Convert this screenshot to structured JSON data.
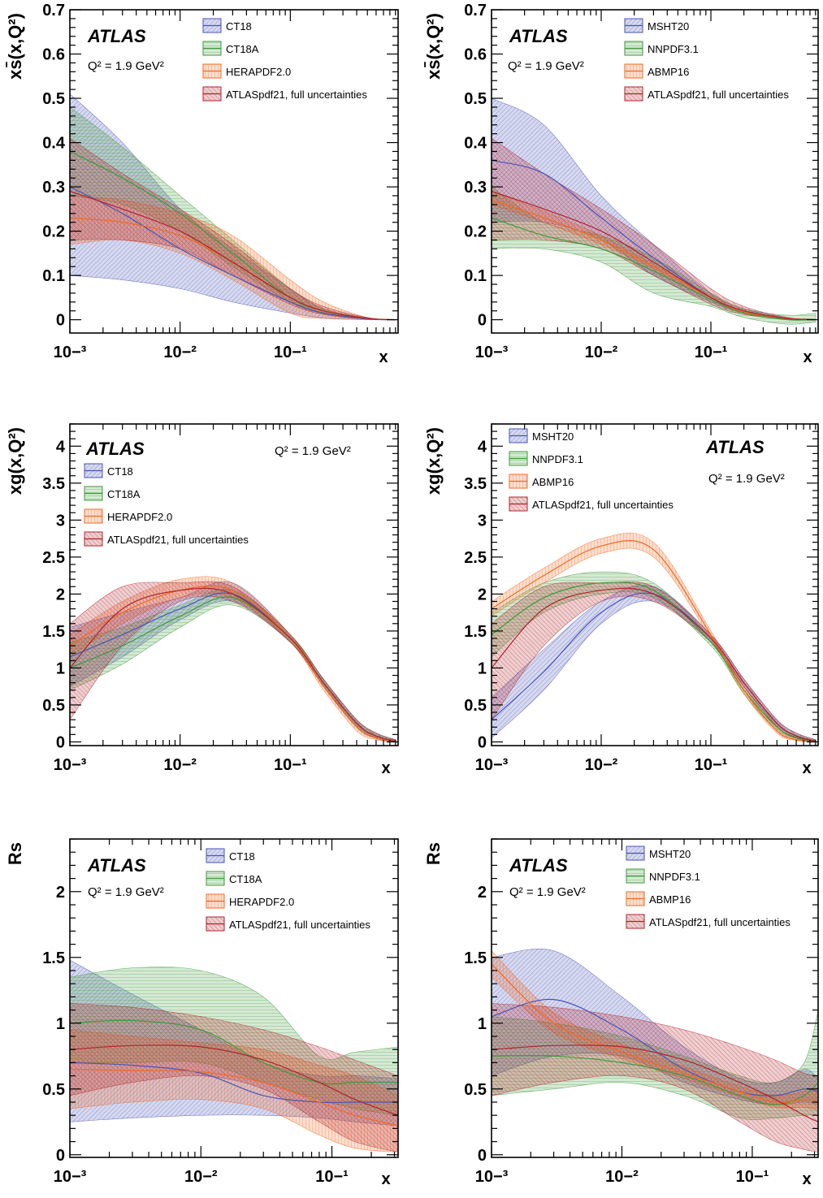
{
  "figure": {
    "title": "",
    "colors": {
      "CT18": "#4a54b8",
      "CT18A": "#3f9a3a",
      "HERAPDF2.0": "#f06a22",
      "MSHT20": "#4a54b8",
      "NNPDF3.1": "#3f9a3a",
      "ABMP16": "#f06a22",
      "ATLASpdf21, full uncertainties": "#b0232a"
    }
  },
  "chart_data": [
    {
      "type": "area",
      "id": "p1",
      "ylabel": "xs̄(x,Q²)",
      "xlabel": "x",
      "xscale": "log",
      "xlim": [
        0.001,
        0.95
      ],
      "ylim": [
        -0.03,
        0.7
      ],
      "yticks": [
        0,
        0.1,
        0.2,
        0.3,
        0.4,
        0.5,
        0.6,
        0.7
      ],
      "ytick_labels": [
        "0",
        "0.1",
        "0.2",
        "0.3",
        "0.4",
        "0.5",
        "0.6",
        "0.7"
      ],
      "atlas": "ATLAS",
      "q2_text": "Q² = 1.9 GeV²",
      "x": [
        0.001,
        0.003,
        0.01,
        0.03,
        0.1,
        0.2,
        0.5,
        0.9
      ],
      "series": [
        {
          "name": "CT18",
          "central": [
            0.3,
            0.24,
            0.16,
            0.1,
            0.04,
            0.015,
            0.002,
            0.0
          ],
          "low": [
            0.1,
            0.09,
            0.07,
            0.04,
            0.015,
            0.004,
            0.0,
            0.0
          ],
          "high": [
            0.51,
            0.4,
            0.25,
            0.16,
            0.07,
            0.025,
            0.004,
            0.0
          ]
        },
        {
          "name": "CT18A",
          "central": [
            0.38,
            0.32,
            0.24,
            0.15,
            0.05,
            0.02,
            0.003,
            0.0
          ],
          "low": [
            0.28,
            0.26,
            0.2,
            0.12,
            0.04,
            0.014,
            0.001,
            0.0
          ],
          "high": [
            0.48,
            0.39,
            0.28,
            0.18,
            0.07,
            0.025,
            0.004,
            0.0
          ]
        },
        {
          "name": "HERAPDF2.0",
          "central": [
            0.23,
            0.22,
            0.19,
            0.13,
            0.05,
            0.02,
            0.003,
            0.0
          ],
          "low": [
            0.17,
            0.18,
            0.15,
            0.09,
            0.015,
            0.003,
            0.0,
            0.0
          ],
          "high": [
            0.28,
            0.27,
            0.24,
            0.19,
            0.09,
            0.04,
            0.005,
            0.0
          ]
        },
        {
          "name": "ATLASpdf21, full uncertainties",
          "central": [
            0.29,
            0.25,
            0.2,
            0.13,
            0.05,
            0.02,
            0.003,
            0.0
          ],
          "low": [
            0.18,
            0.18,
            0.16,
            0.1,
            0.035,
            0.012,
            0.001,
            0.0
          ],
          "high": [
            0.41,
            0.33,
            0.25,
            0.17,
            0.07,
            0.03,
            0.005,
            0.0
          ]
        }
      ]
    },
    {
      "type": "area",
      "id": "p2",
      "ylabel": "xs̄(x,Q²)",
      "xlabel": "x",
      "xscale": "log",
      "xlim": [
        0.001,
        0.95
      ],
      "ylim": [
        -0.03,
        0.7
      ],
      "yticks": [
        0,
        0.1,
        0.2,
        0.3,
        0.4,
        0.5,
        0.6,
        0.7
      ],
      "ytick_labels": [
        "0",
        "0.1",
        "0.2",
        "0.3",
        "0.4",
        "0.5",
        "0.6",
        "0.7"
      ],
      "atlas": "ATLAS",
      "q2_text": "Q² = 1.9 GeV²",
      "x": [
        0.001,
        0.003,
        0.01,
        0.03,
        0.1,
        0.2,
        0.5,
        0.9
      ],
      "series": [
        {
          "name": "MSHT20",
          "central": [
            0.36,
            0.33,
            0.23,
            0.14,
            0.05,
            0.02,
            0.003,
            0.0
          ],
          "low": [
            0.22,
            0.22,
            0.18,
            0.1,
            0.04,
            0.015,
            0.001,
            0.0
          ],
          "high": [
            0.5,
            0.44,
            0.28,
            0.17,
            0.06,
            0.025,
            0.004,
            0.0
          ]
        },
        {
          "name": "NNPDF3.1",
          "central": [
            0.23,
            0.19,
            0.16,
            0.11,
            0.045,
            0.015,
            0.0,
            0.0
          ],
          "low": [
            0.16,
            0.16,
            0.13,
            0.06,
            0.03,
            0.005,
            -0.01,
            -0.005
          ],
          "high": [
            0.3,
            0.22,
            0.19,
            0.14,
            0.06,
            0.025,
            0.01,
            0.015
          ]
        },
        {
          "name": "ABMP16",
          "central": [
            0.27,
            0.23,
            0.18,
            0.12,
            0.05,
            0.018,
            0.003,
            0.0
          ],
          "low": [
            0.26,
            0.22,
            0.17,
            0.115,
            0.045,
            0.016,
            0.002,
            0.0
          ],
          "high": [
            0.29,
            0.245,
            0.19,
            0.125,
            0.055,
            0.02,
            0.004,
            0.0
          ]
        },
        {
          "name": "ATLASpdf21, full uncertainties",
          "central": [
            0.29,
            0.25,
            0.2,
            0.13,
            0.05,
            0.02,
            0.003,
            0.0
          ],
          "low": [
            0.18,
            0.18,
            0.16,
            0.1,
            0.035,
            0.012,
            0.001,
            0.0
          ],
          "high": [
            0.41,
            0.33,
            0.25,
            0.17,
            0.07,
            0.03,
            0.005,
            0.0
          ]
        }
      ]
    },
    {
      "type": "area",
      "id": "p3",
      "ylabel": "xg(x,Q²)",
      "xlabel": "x",
      "xscale": "log",
      "xlim": [
        0.001,
        0.95
      ],
      "ylim": [
        -0.05,
        4.3
      ],
      "yticks": [
        0,
        0.5,
        1,
        1.5,
        2,
        2.5,
        3,
        3.5,
        4
      ],
      "ytick_labels": [
        "0",
        "0.5",
        "1",
        "1.5",
        "2",
        "2.5",
        "3",
        "3.5",
        "4"
      ],
      "atlas": "ATLAS",
      "q2_text": "Q² = 1.9 GeV²",
      "x": [
        0.001,
        0.003,
        0.01,
        0.03,
        0.1,
        0.2,
        0.4,
        0.6,
        0.9
      ],
      "series": [
        {
          "name": "CT18",
          "central": [
            1.15,
            1.45,
            1.8,
            2.0,
            1.4,
            0.8,
            0.25,
            0.08,
            0.01
          ],
          "low": [
            0.75,
            1.15,
            1.65,
            1.9,
            1.35,
            0.75,
            0.2,
            0.05,
            0.0
          ],
          "high": [
            1.55,
            1.75,
            1.95,
            2.15,
            1.45,
            0.85,
            0.3,
            0.12,
            0.03
          ]
        },
        {
          "name": "CT18A",
          "central": [
            1.0,
            1.3,
            1.7,
            1.95,
            1.4,
            0.8,
            0.25,
            0.08,
            0.01
          ],
          "low": [
            0.7,
            1.05,
            1.55,
            1.85,
            1.35,
            0.75,
            0.2,
            0.05,
            0.0
          ],
          "high": [
            1.35,
            1.55,
            1.85,
            2.05,
            1.45,
            0.85,
            0.3,
            0.12,
            0.03
          ]
        },
        {
          "name": "HERAPDF2.0",
          "central": [
            1.3,
            1.75,
            2.05,
            2.05,
            1.4,
            0.75,
            0.2,
            0.05,
            0.0
          ],
          "low": [
            1.15,
            1.6,
            1.95,
            1.95,
            1.35,
            0.7,
            0.15,
            0.03,
            0.0
          ],
          "high": [
            1.45,
            1.9,
            2.2,
            2.15,
            1.45,
            0.8,
            0.25,
            0.08,
            0.01
          ]
        },
        {
          "name": "ATLASpdf21, full uncertainties",
          "central": [
            1.0,
            1.8,
            2.05,
            2.0,
            1.4,
            0.8,
            0.25,
            0.08,
            0.01
          ],
          "low": [
            0.3,
            1.3,
            1.9,
            1.9,
            1.35,
            0.75,
            0.2,
            0.05,
            0.0
          ],
          "high": [
            1.6,
            2.1,
            2.15,
            2.1,
            1.45,
            0.85,
            0.3,
            0.12,
            0.03
          ]
        }
      ]
    },
    {
      "type": "area",
      "id": "p4",
      "ylabel": "xg(x,Q²)",
      "xlabel": "x",
      "xscale": "log",
      "xlim": [
        0.001,
        0.95
      ],
      "ylim": [
        -0.05,
        4.3
      ],
      "yticks": [
        0,
        0.5,
        1,
        1.5,
        2,
        2.5,
        3,
        3.5,
        4
      ],
      "ytick_labels": [
        "0",
        "0.5",
        "1",
        "1.5",
        "2",
        "2.5",
        "3",
        "3.5",
        "4"
      ],
      "atlas": "ATLAS",
      "q2_text": "Q² = 1.9 GeV²",
      "x": [
        0.001,
        0.003,
        0.01,
        0.03,
        0.1,
        0.2,
        0.4,
        0.6,
        0.9
      ],
      "series": [
        {
          "name": "MSHT20",
          "central": [
            0.3,
            0.95,
            1.75,
            2.0,
            1.4,
            0.8,
            0.25,
            0.08,
            0.01
          ],
          "low": [
            0.05,
            0.7,
            1.6,
            1.9,
            1.35,
            0.75,
            0.2,
            0.05,
            0.0
          ],
          "high": [
            0.6,
            1.25,
            1.9,
            2.1,
            1.45,
            0.85,
            0.3,
            0.12,
            0.03
          ]
        },
        {
          "name": "NNPDF3.1",
          "central": [
            1.45,
            1.95,
            2.15,
            2.05,
            1.35,
            0.7,
            0.2,
            0.06,
            0.01
          ],
          "low": [
            1.15,
            1.75,
            2.0,
            1.95,
            1.3,
            0.65,
            0.15,
            0.03,
            0.0
          ],
          "high": [
            1.75,
            2.15,
            2.3,
            2.15,
            1.4,
            0.75,
            0.25,
            0.09,
            0.02
          ]
        },
        {
          "name": "ABMP16",
          "central": [
            1.8,
            2.25,
            2.65,
            2.6,
            1.45,
            0.7,
            0.15,
            0.03,
            0.0
          ],
          "low": [
            1.7,
            2.15,
            2.55,
            2.5,
            1.4,
            0.65,
            0.12,
            0.02,
            0.0
          ],
          "high": [
            1.9,
            2.35,
            2.75,
            2.7,
            1.5,
            0.75,
            0.18,
            0.05,
            0.0
          ]
        },
        {
          "name": "ATLASpdf21, full uncertainties",
          "central": [
            1.0,
            1.8,
            2.05,
            2.0,
            1.4,
            0.8,
            0.25,
            0.08,
            0.01
          ],
          "low": [
            0.3,
            1.3,
            1.9,
            1.9,
            1.35,
            0.75,
            0.2,
            0.05,
            0.0
          ],
          "high": [
            1.6,
            2.1,
            2.15,
            2.1,
            1.45,
            0.85,
            0.3,
            0.12,
            0.03
          ]
        }
      ]
    },
    {
      "type": "area",
      "id": "p5",
      "ylabel": "Rs",
      "xlabel": "x",
      "xscale": "log",
      "xlim": [
        0.001,
        0.32
      ],
      "ylim": [
        -0.02,
        2.4
      ],
      "yticks": [
        0,
        0.5,
        1,
        1.5,
        2
      ],
      "ytick_labels": [
        "0",
        "0.5",
        "1",
        "1.5",
        "2"
      ],
      "atlas": "ATLAS",
      "q2_text": "Q² = 1.9 GeV²",
      "x": [
        0.001,
        0.003,
        0.01,
        0.03,
        0.08,
        0.15,
        0.32
      ],
      "series": [
        {
          "name": "CT18",
          "central": [
            0.7,
            0.68,
            0.62,
            0.45,
            0.4,
            0.4,
            0.4
          ],
          "low": [
            0.25,
            0.28,
            0.3,
            0.3,
            0.28,
            0.25,
            0.22
          ],
          "high": [
            1.48,
            1.22,
            0.95,
            0.7,
            0.6,
            0.6,
            0.58
          ]
        },
        {
          "name": "CT18A",
          "central": [
            1.0,
            1.02,
            0.95,
            0.7,
            0.55,
            0.55,
            0.55
          ],
          "low": [
            0.7,
            0.7,
            0.7,
            0.55,
            0.42,
            0.35,
            0.3
          ],
          "high": [
            1.35,
            1.42,
            1.4,
            1.2,
            0.75,
            0.78,
            0.82
          ]
        },
        {
          "name": "HERAPDF2.0",
          "central": [
            0.65,
            0.64,
            0.63,
            0.55,
            0.4,
            0.3,
            0.22
          ],
          "low": [
            0.35,
            0.4,
            0.42,
            0.35,
            0.15,
            0.05,
            0.02
          ],
          "high": [
            0.95,
            0.9,
            0.85,
            0.8,
            0.68,
            0.6,
            0.45
          ]
        },
        {
          "name": "ATLASpdf21, full uncertainties",
          "central": [
            0.8,
            0.83,
            0.82,
            0.72,
            0.55,
            0.42,
            0.3
          ],
          "low": [
            0.45,
            0.55,
            0.6,
            0.5,
            0.25,
            0.1,
            0.02
          ],
          "high": [
            1.15,
            1.12,
            1.05,
            0.95,
            0.82,
            0.72,
            0.6
          ]
        }
      ]
    },
    {
      "type": "area",
      "id": "p6",
      "ylabel": "Rs",
      "xlabel": "x",
      "xscale": "log",
      "xlim": [
        0.001,
        0.32
      ],
      "ylim": [
        -0.02,
        2.4
      ],
      "yticks": [
        0,
        0.5,
        1,
        1.5,
        2
      ],
      "ytick_labels": [
        "0",
        "0.5",
        "1",
        "1.5",
        "2"
      ],
      "atlas": "ATLAS",
      "q2_text": "Q² = 1.9 GeV²",
      "x": [
        0.001,
        0.003,
        0.01,
        0.03,
        0.08,
        0.15,
        0.25,
        0.32
      ],
      "series": [
        {
          "name": "MSHT20",
          "central": [
            1.05,
            1.18,
            0.95,
            0.65,
            0.48,
            0.45,
            0.5,
            0.48
          ],
          "low": [
            0.6,
            0.75,
            0.75,
            0.55,
            0.42,
            0.38,
            0.4,
            0.38
          ],
          "high": [
            1.5,
            1.55,
            1.2,
            0.82,
            0.58,
            0.55,
            0.65,
            0.58
          ]
        },
        {
          "name": "NNPDF3.1",
          "central": [
            0.75,
            0.75,
            0.7,
            0.6,
            0.45,
            0.38,
            0.45,
            0.55
          ],
          "low": [
            0.45,
            0.5,
            0.55,
            0.45,
            0.28,
            0.28,
            0.3,
            0.3
          ],
          "high": [
            1.05,
            1.0,
            0.9,
            0.75,
            0.6,
            0.55,
            0.7,
            1.1
          ]
        },
        {
          "name": "ABMP16",
          "central": [
            1.45,
            1.0,
            0.78,
            0.62,
            0.48,
            0.4,
            0.42,
            0.42
          ],
          "low": [
            1.35,
            0.93,
            0.73,
            0.58,
            0.44,
            0.36,
            0.36,
            0.34
          ],
          "high": [
            1.55,
            1.08,
            0.84,
            0.67,
            0.52,
            0.45,
            0.48,
            0.5
          ]
        },
        {
          "name": "ATLASpdf21, full uncertainties",
          "central": [
            0.8,
            0.83,
            0.82,
            0.72,
            0.55,
            0.42,
            0.3,
            0.25
          ],
          "low": [
            0.45,
            0.55,
            0.6,
            0.5,
            0.25,
            0.1,
            0.04,
            0.02
          ],
          "high": [
            1.15,
            1.12,
            1.05,
            0.95,
            0.82,
            0.72,
            0.62,
            0.6
          ]
        }
      ]
    }
  ]
}
